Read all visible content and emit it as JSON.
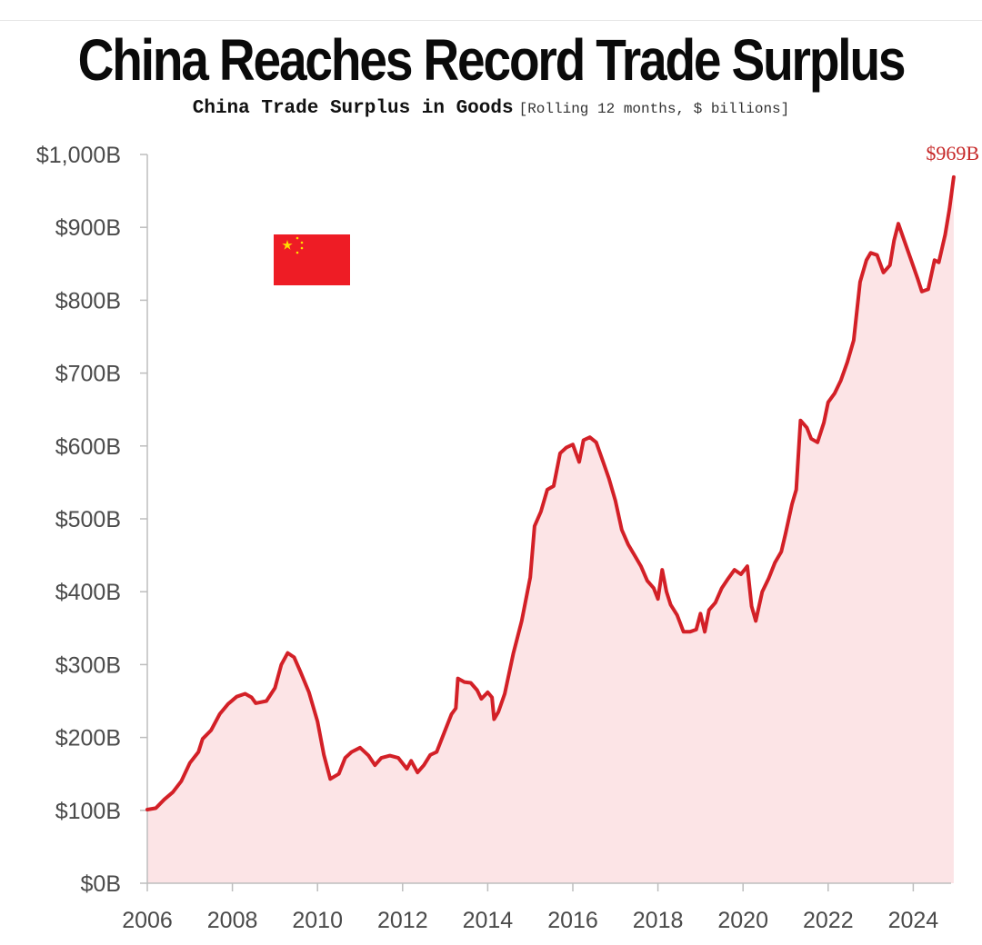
{
  "title": "China Reaches Record Trade Surplus",
  "subtitle": "China Trade Surplus in Goods",
  "subtitle_note": "[Rolling 12 months, $ billions]",
  "colors": {
    "line": "#d32027",
    "fill": "#fce4e6",
    "axis": "#bdbdbd",
    "flag_red": "#ee1c25",
    "flag_star": "#ffde00"
  },
  "flag_icon": "china-flag-icon",
  "chart_data": {
    "type": "area",
    "title": "China Trade Surplus in Goods",
    "subtitle": "[Rolling 12 months, $ billions]",
    "xlabel": "",
    "ylabel": "",
    "xlim": [
      2006,
      2024.95
    ],
    "ylim": [
      0,
      1000
    ],
    "x_ticks": [
      2006,
      2008,
      2010,
      2012,
      2014,
      2016,
      2018,
      2020,
      2022,
      2024
    ],
    "x_tick_labels": [
      "2006",
      "2008",
      "2010",
      "2012",
      "2014",
      "2016",
      "2018",
      "2020",
      "2022",
      "2024"
    ],
    "y_ticks": [
      0,
      100,
      200,
      300,
      400,
      500,
      600,
      700,
      800,
      900,
      1000
    ],
    "y_tick_labels": [
      "$0B",
      "$100B",
      "$200B",
      "$300B",
      "$400B",
      "$500B",
      "$600B",
      "$700B",
      "$800B",
      "$900B",
      "$1,000B"
    ],
    "grid": false,
    "end_label": "$969B",
    "series": [
      {
        "values": [
          [
            2006.0,
            101
          ],
          [
            2006.2,
            103
          ],
          [
            2006.4,
            115
          ],
          [
            2006.6,
            125
          ],
          [
            2006.8,
            140
          ],
          [
            2007.0,
            165
          ],
          [
            2007.2,
            180
          ],
          [
            2007.3,
            198
          ],
          [
            2007.5,
            210
          ],
          [
            2007.7,
            232
          ],
          [
            2007.9,
            246
          ],
          [
            2008.1,
            256
          ],
          [
            2008.3,
            260
          ],
          [
            2008.45,
            255
          ],
          [
            2008.55,
            247
          ],
          [
            2008.8,
            250
          ],
          [
            2009.0,
            268
          ],
          [
            2009.15,
            300
          ],
          [
            2009.3,
            316
          ],
          [
            2009.45,
            310
          ],
          [
            2009.6,
            290
          ],
          [
            2009.8,
            262
          ],
          [
            2010.0,
            222
          ],
          [
            2010.15,
            176
          ],
          [
            2010.3,
            143
          ],
          [
            2010.5,
            150
          ],
          [
            2010.65,
            172
          ],
          [
            2010.8,
            180
          ],
          [
            2011.0,
            186
          ],
          [
            2011.2,
            175
          ],
          [
            2011.35,
            162
          ],
          [
            2011.5,
            172
          ],
          [
            2011.7,
            175
          ],
          [
            2011.9,
            172
          ],
          [
            2012.1,
            157
          ],
          [
            2012.2,
            168
          ],
          [
            2012.35,
            152
          ],
          [
            2012.5,
            162
          ],
          [
            2012.65,
            176
          ],
          [
            2012.8,
            180
          ],
          [
            2013.0,
            210
          ],
          [
            2013.15,
            232
          ],
          [
            2013.25,
            240
          ],
          [
            2013.3,
            281
          ],
          [
            2013.45,
            276
          ],
          [
            2013.6,
            275
          ],
          [
            2013.75,
            265
          ],
          [
            2013.85,
            253
          ],
          [
            2014.0,
            262
          ],
          [
            2014.1,
            255
          ],
          [
            2014.15,
            225
          ],
          [
            2014.25,
            235
          ],
          [
            2014.4,
            260
          ],
          [
            2014.6,
            315
          ],
          [
            2014.8,
            360
          ],
          [
            2015.0,
            420
          ],
          [
            2015.1,
            490
          ],
          [
            2015.25,
            510
          ],
          [
            2015.4,
            540
          ],
          [
            2015.55,
            545
          ],
          [
            2015.7,
            590
          ],
          [
            2015.85,
            598
          ],
          [
            2016.0,
            602
          ],
          [
            2016.15,
            578
          ],
          [
            2016.25,
            608
          ],
          [
            2016.4,
            612
          ],
          [
            2016.55,
            605
          ],
          [
            2016.7,
            580
          ],
          [
            2016.85,
            555
          ],
          [
            2017.0,
            525
          ],
          [
            2017.15,
            485
          ],
          [
            2017.3,
            465
          ],
          [
            2017.45,
            450
          ],
          [
            2017.6,
            435
          ],
          [
            2017.75,
            415
          ],
          [
            2017.9,
            405
          ],
          [
            2018.0,
            390
          ],
          [
            2018.1,
            430
          ],
          [
            2018.2,
            400
          ],
          [
            2018.3,
            382
          ],
          [
            2018.45,
            368
          ],
          [
            2018.6,
            345
          ],
          [
            2018.75,
            345
          ],
          [
            2018.9,
            348
          ],
          [
            2019.0,
            370
          ],
          [
            2019.1,
            345
          ],
          [
            2019.2,
            375
          ],
          [
            2019.35,
            385
          ],
          [
            2019.5,
            405
          ],
          [
            2019.65,
            418
          ],
          [
            2019.8,
            430
          ],
          [
            2019.95,
            424
          ],
          [
            2020.1,
            435
          ],
          [
            2020.2,
            380
          ],
          [
            2020.3,
            360
          ],
          [
            2020.45,
            400
          ],
          [
            2020.6,
            418
          ],
          [
            2020.75,
            440
          ],
          [
            2020.9,
            455
          ],
          [
            2021.0,
            480
          ],
          [
            2021.15,
            520
          ],
          [
            2021.25,
            540
          ],
          [
            2021.35,
            635
          ],
          [
            2021.5,
            625
          ],
          [
            2021.6,
            610
          ],
          [
            2021.75,
            605
          ],
          [
            2021.9,
            632
          ],
          [
            2022.0,
            660
          ],
          [
            2022.15,
            672
          ],
          [
            2022.3,
            690
          ],
          [
            2022.45,
            715
          ],
          [
            2022.6,
            745
          ],
          [
            2022.75,
            825
          ],
          [
            2022.9,
            855
          ],
          [
            2023.0,
            865
          ],
          [
            2023.15,
            862
          ],
          [
            2023.3,
            838
          ],
          [
            2023.45,
            848
          ],
          [
            2023.55,
            882
          ],
          [
            2023.65,
            905
          ],
          [
            2023.8,
            880
          ],
          [
            2023.95,
            855
          ],
          [
            2024.1,
            830
          ],
          [
            2024.2,
            812
          ],
          [
            2024.35,
            815
          ],
          [
            2024.5,
            855
          ],
          [
            2024.6,
            852
          ],
          [
            2024.75,
            890
          ],
          [
            2024.85,
            925
          ],
          [
            2024.95,
            969
          ]
        ]
      }
    ]
  }
}
